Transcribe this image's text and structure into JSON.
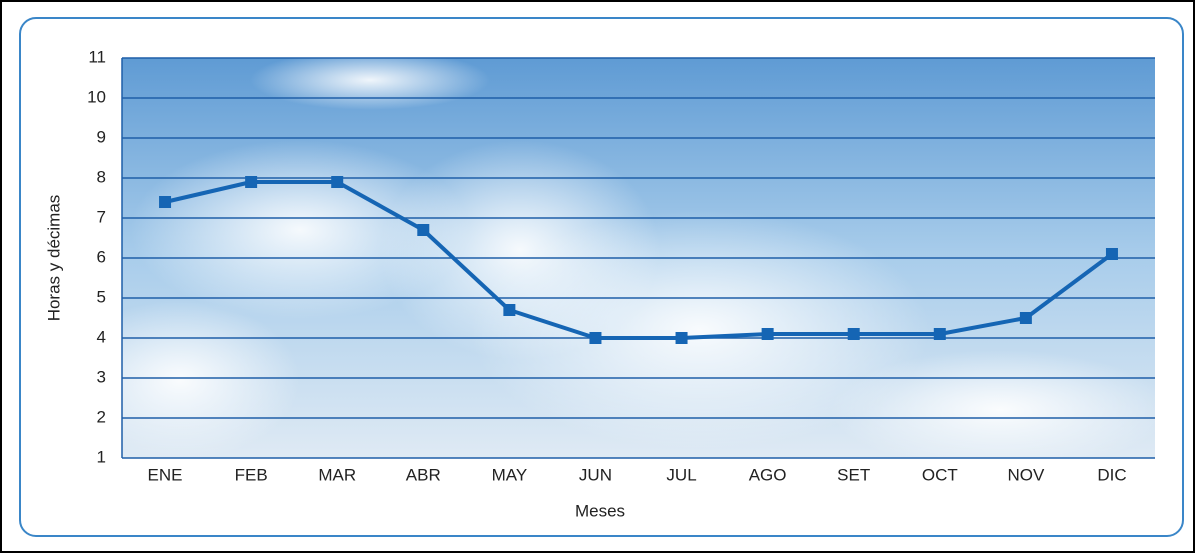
{
  "chart_data": {
    "type": "line",
    "x_label": "Meses",
    "y_label": "Horas y décimas",
    "categories": [
      "ENE",
      "FEB",
      "MAR",
      "ABR",
      "MAY",
      "JUN",
      "JUL",
      "AGO",
      "SET",
      "OCT",
      "NOV",
      "DIC"
    ],
    "values": [
      7.4,
      7.9,
      7.9,
      6.7,
      4.7,
      4.0,
      4.0,
      4.1,
      4.1,
      4.1,
      4.5,
      6.1
    ],
    "color": "#1565b4",
    "ylim": [
      1,
      11
    ],
    "yticks": [
      1,
      2,
      3,
      4,
      5,
      6,
      7,
      8,
      9,
      10,
      11
    ],
    "grid": true
  }
}
